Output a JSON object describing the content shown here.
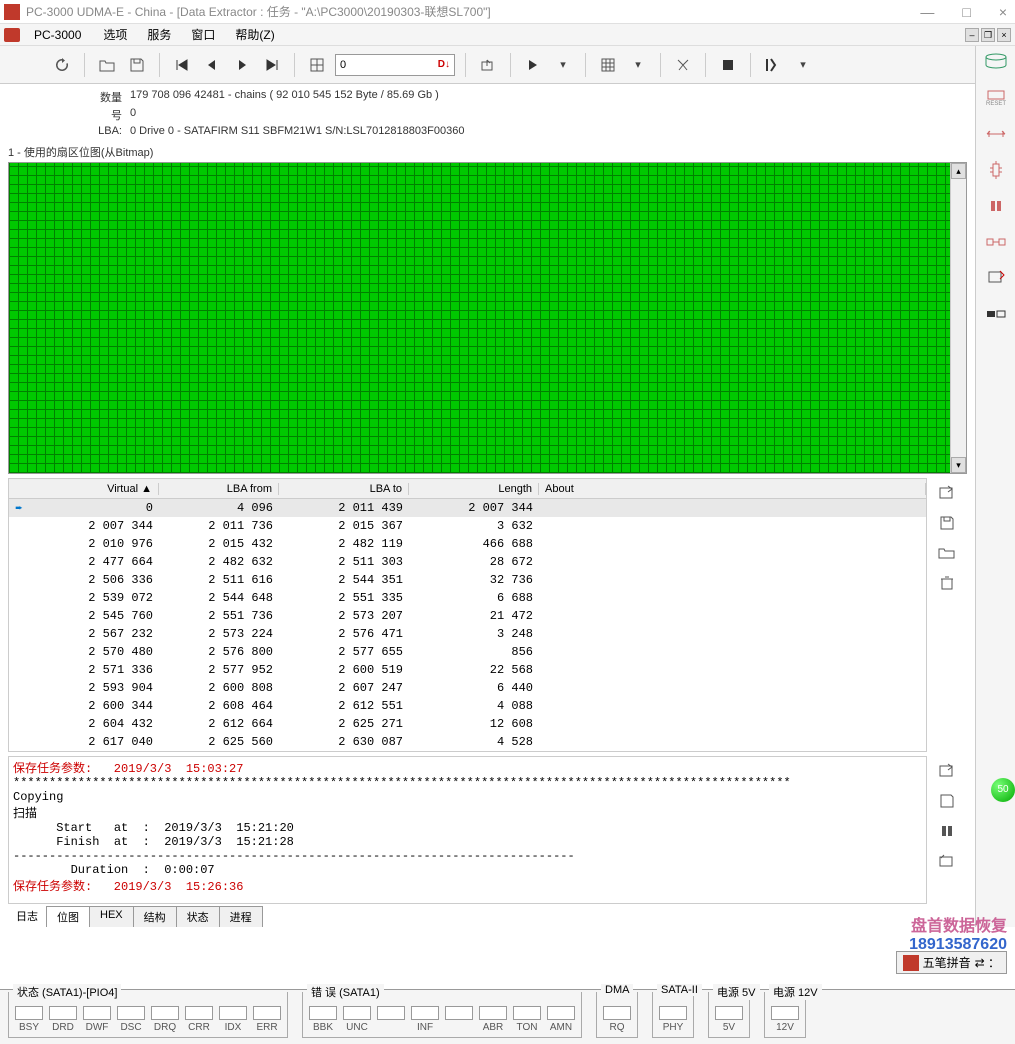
{
  "window": {
    "title": "PC-3000 UDMA-E - China - [Data Extractor : 任务 - \"A:\\PC3000\\20190303-联想SL700\"]",
    "minimize": "—",
    "maximize": "□",
    "close": "×"
  },
  "menubar": {
    "app": "PC-3000",
    "items": [
      "选项",
      "服务",
      "窗口",
      "帮助(Z)"
    ]
  },
  "toolbar": {
    "input_value": "0",
    "marker": "D↓"
  },
  "info": {
    "rows": [
      {
        "label": "数量",
        "value": "179 708 096   42481 - chains   ( 92 010 545 152 Byte  /  85.69 Gb )"
      },
      {
        "label": "号",
        "value": "0"
      },
      {
        "label": "LBA:",
        "value": "0            Drive     0 - SATAFIRM    S11 SBFM21W1 S/N:LSL7012818803F00360"
      }
    ]
  },
  "bitmap": {
    "label": "1 - 使用的扇区位图(从Bitmap)"
  },
  "table": {
    "headers": {
      "virtual": "Virtual  ▲",
      "lbafrom": "LBA from",
      "lbato": "LBA to",
      "length": "Length",
      "about": "About"
    },
    "rows": [
      {
        "v": "        0",
        "f": "    4 096",
        "t": "2 011 439",
        "l": "2 007 344",
        "sel": true,
        "icon": "➨"
      },
      {
        "v": "2 007 344",
        "f": "2 011 736",
        "t": "2 015 367",
        "l": "    3 632"
      },
      {
        "v": "2 010 976",
        "f": "2 015 432",
        "t": "2 482 119",
        "l": "  466 688"
      },
      {
        "v": "2 477 664",
        "f": "2 482 632",
        "t": "2 511 303",
        "l": "   28 672"
      },
      {
        "v": "2 506 336",
        "f": "2 511 616",
        "t": "2 544 351",
        "l": "   32 736"
      },
      {
        "v": "2 539 072",
        "f": "2 544 648",
        "t": "2 551 335",
        "l": "    6 688"
      },
      {
        "v": "2 545 760",
        "f": "2 551 736",
        "t": "2 573 207",
        "l": "   21 472"
      },
      {
        "v": "2 567 232",
        "f": "2 573 224",
        "t": "2 576 471",
        "l": "    3 248"
      },
      {
        "v": "2 570 480",
        "f": "2 576 800",
        "t": "2 577 655",
        "l": "      856"
      },
      {
        "v": "2 571 336",
        "f": "2 577 952",
        "t": "2 600 519",
        "l": "   22 568"
      },
      {
        "v": "2 593 904",
        "f": "2 600 808",
        "t": "2 607 247",
        "l": "    6 440"
      },
      {
        "v": "2 600 344",
        "f": "2 608 464",
        "t": "2 612 551",
        "l": "    4 088"
      },
      {
        "v": "2 604 432",
        "f": "2 612 664",
        "t": "2 625 271",
        "l": "   12 608"
      },
      {
        "v": "2 617 040",
        "f": "2 625 560",
        "t": "2 630 087",
        "l": "    4 528"
      }
    ]
  },
  "log": {
    "lines": [
      {
        "cls": "log-red",
        "txt": "保存任务参数:   2019/3/3  15:03:27"
      },
      {
        "cls": "",
        "txt": "************************************************************************************************************"
      },
      {
        "cls": "",
        "txt": "Copying"
      },
      {
        "cls": "",
        "txt": "扫描"
      },
      {
        "cls": "",
        "txt": "      Start   at  :  2019/3/3  15:21:20"
      },
      {
        "cls": "",
        "txt": "      Finish  at  :  2019/3/3  15:21:28"
      },
      {
        "cls": "",
        "txt": "------------------------------------------------------------------------------"
      },
      {
        "cls": "",
        "txt": "        Duration  :  0:00:07"
      },
      {
        "cls": "log-red",
        "txt": "保存任务参数:   2019/3/3  15:26:36"
      }
    ]
  },
  "tabs": {
    "left_label": "日志",
    "items": [
      "位图",
      "HEX",
      "结构",
      "状态",
      "进程"
    ],
    "active": 0
  },
  "statusbar": {
    "groups": [
      {
        "label": "状态 (SATA1)-[PIO4]",
        "cells": [
          "BSY",
          "DRD",
          "DWF",
          "DSC",
          "DRQ",
          "CRR",
          "IDX",
          "ERR"
        ]
      },
      {
        "label": "错 误 (SATA1)",
        "cells": [
          "BBK",
          "UNC",
          "",
          "INF",
          "",
          "ABR",
          "TON",
          "AMN"
        ]
      },
      {
        "label": "DMA",
        "cells": [
          "RQ"
        ]
      },
      {
        "label": "SATA-II",
        "cells": [
          "PHY"
        ]
      },
      {
        "label": "电源 5V",
        "cells": [
          "5V"
        ]
      },
      {
        "label": "电源 12V",
        "cells": [
          "12V"
        ]
      }
    ]
  },
  "watermark": {
    "line1": "盘首数据恢复",
    "line2": "18913587620"
  },
  "ime": {
    "text": "五笔拼音",
    "extra": "⇄ ："
  },
  "green": "50"
}
